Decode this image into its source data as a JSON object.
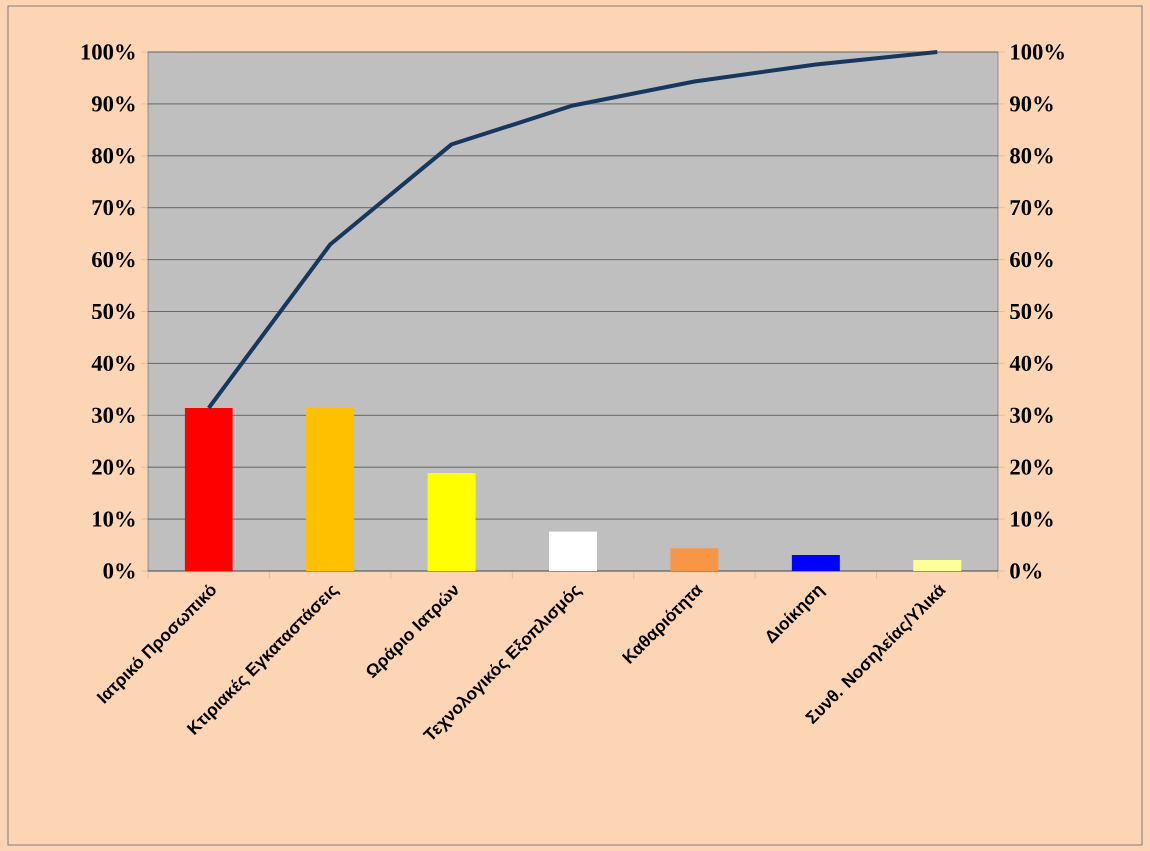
{
  "chart_data": {
    "type": "bar",
    "categories": [
      "Ιατρικό Προσωπικό",
      "Κτιριακές Εγκαταστάσεις",
      "Ωράριο Ιατρών",
      "Τεχνολογικός Εξοπλισμός",
      "Καθαριότητα",
      "Διοίκηση",
      "Συνθ. Νοσηλείας/Υλικά"
    ],
    "series": [
      {
        "values": [
          31.4,
          31.4,
          18.9,
          7.6,
          4.4,
          3.1,
          2.1
        ],
        "colors": [
          "#ff0000",
          "#ffc000",
          "#ffff00",
          "#ffffff",
          "#f79646",
          "#0000ff",
          "#ffff99"
        ]
      },
      {
        "type": "line",
        "axis": "y2",
        "color": "#17375e",
        "values": [
          31.4,
          62.9,
          82.2,
          89.7,
          94.3,
          97.6,
          100
        ]
      }
    ],
    "ylim": [
      0,
      100
    ],
    "yticks": [
      {
        "value": 0,
        "label": "0%"
      },
      {
        "value": 10,
        "label": "10%"
      },
      {
        "value": 20,
        "label": "20%"
      },
      {
        "value": 30,
        "label": "30%"
      },
      {
        "value": 40,
        "label": "40%"
      },
      {
        "value": 50,
        "label": "50%"
      },
      {
        "value": 60,
        "label": "60%"
      },
      {
        "value": 70,
        "label": "70%"
      },
      {
        "value": 80,
        "label": "80%"
      },
      {
        "value": 90,
        "label": "90%"
      },
      {
        "value": 100,
        "label": "100%"
      }
    ],
    "y2lim": [
      0,
      100
    ],
    "y2ticks": [
      {
        "value": 0,
        "label": "0%"
      },
      {
        "value": 10,
        "label": "10%"
      },
      {
        "value": 20,
        "label": "20%"
      },
      {
        "value": 30,
        "label": "30%"
      },
      {
        "value": 40,
        "label": "40%"
      },
      {
        "value": 50,
        "label": "50%"
      },
      {
        "value": 60,
        "label": "60%"
      },
      {
        "value": 70,
        "label": "70%"
      },
      {
        "value": 80,
        "label": "80%"
      },
      {
        "value": 90,
        "label": "90%"
      },
      {
        "value": 100,
        "label": "100%"
      }
    ],
    "grid": "y",
    "marker": "none",
    "line_style": "solid"
  }
}
